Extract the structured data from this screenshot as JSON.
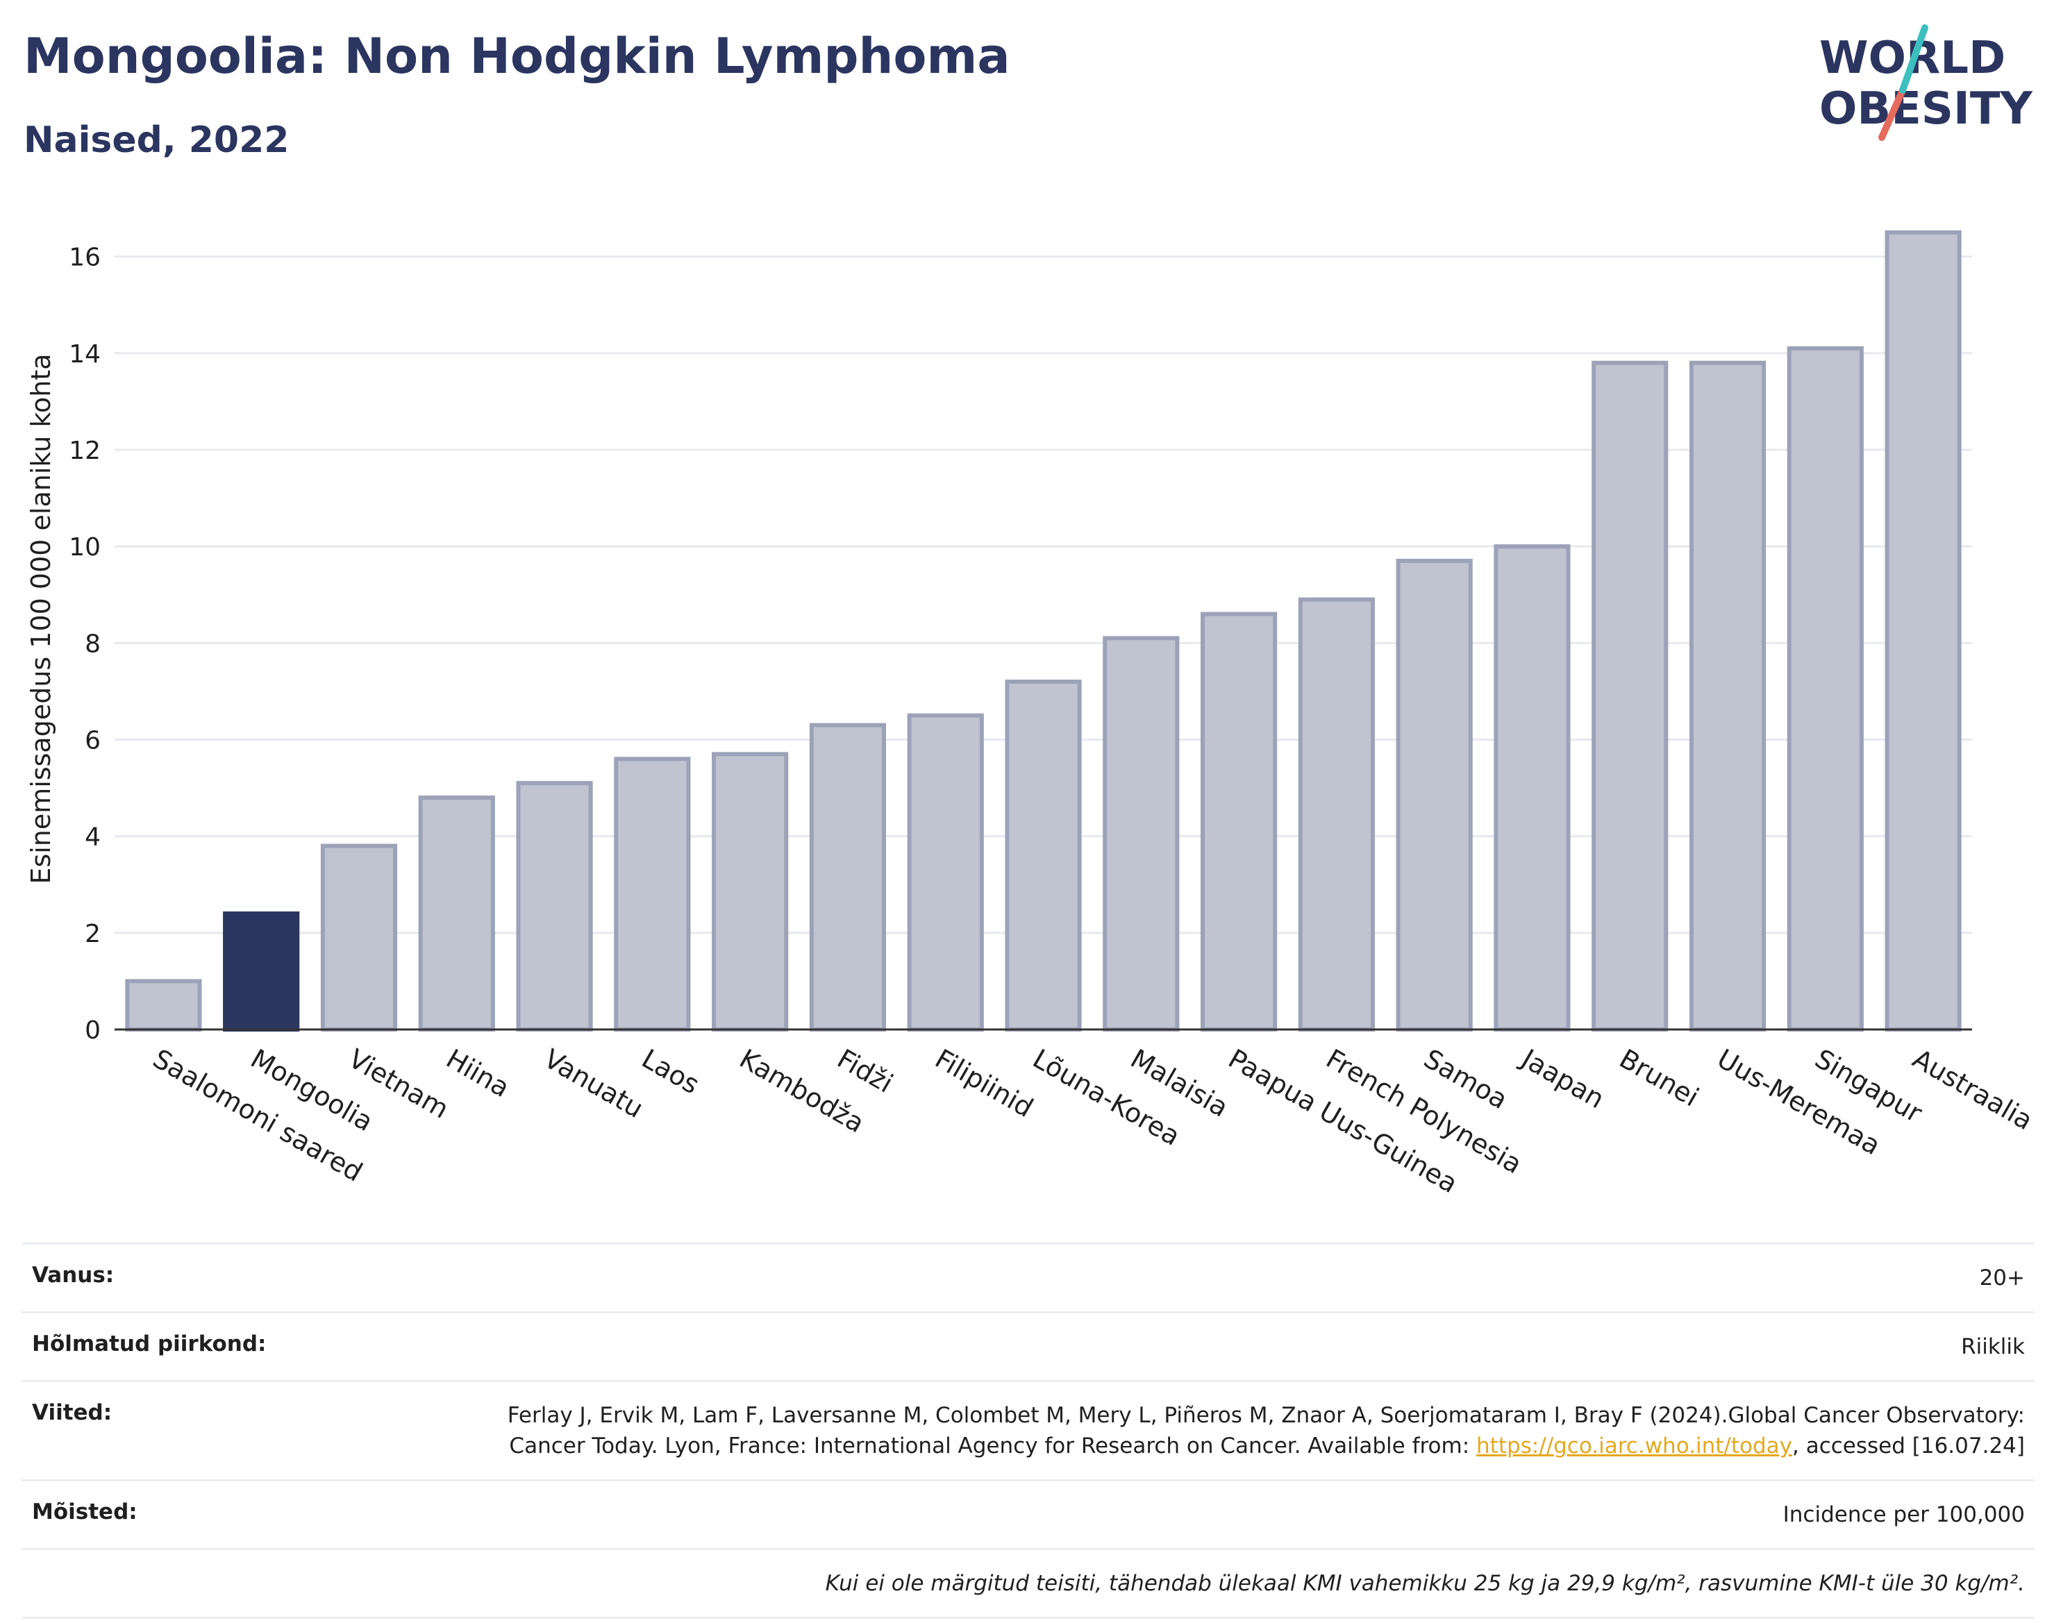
{
  "header": {
    "title": "Mongoolia: Non Hodgkin Lymphoma",
    "subtitle": "Naised, 2022"
  },
  "logo": {
    "line1": "WORLD",
    "line2": "OBESITY"
  },
  "colors": {
    "highlight": "#2b3560",
    "bar": "#c0c4d0",
    "bar_border": "#9ca2b8",
    "grid": "#e8e9ee",
    "axis": "#333333"
  },
  "chart_data": {
    "type": "bar",
    "ylabel": "Esinemissagedus 100 000 elaniku kohta",
    "ylim": [
      0,
      17
    ],
    "yticks": [
      0,
      2,
      4,
      6,
      8,
      10,
      12,
      14,
      16
    ],
    "grid": true,
    "highlight": "Mongoolia",
    "categories": [
      "Saalomoni saared",
      "Mongoolia",
      "Vietnam",
      "Hiina",
      "Vanuatu",
      "Laos",
      "Kambodža",
      "Fidži",
      "Filipiinid",
      "Lõuna-Korea",
      "Malaisia",
      "Paapua Uus-Guinea",
      "French Polynesia",
      "Samoa",
      "Jaapan",
      "Brunei",
      "Uus-Meremaa",
      "Singapur",
      "Austraalia"
    ],
    "values": [
      1.0,
      2.4,
      3.8,
      4.8,
      5.1,
      5.6,
      5.7,
      6.3,
      6.5,
      7.2,
      8.1,
      8.6,
      8.9,
      9.7,
      10.0,
      13.8,
      13.8,
      14.1,
      16.5
    ]
  },
  "meta": {
    "age_label": "Vanus:",
    "age_value": "20+",
    "region_label": "Hõlmatud piirkond:",
    "region_value": "Riiklik",
    "refs_label": "Viited:",
    "refs_text": "Ferlay J, Ervik M, Lam F, Laversanne M, Colombet M, Mery L, Piñeros M, Znaor A, Soerjomataram I, Bray F (2024).Global Cancer Observatory: Cancer Today. Lyon, France: International Agency for Research on Cancer. Available from: ",
    "refs_link": "https://gco.iarc.who.int/today",
    "refs_suffix": ", accessed [16.07.24]",
    "defs_label": "Mõisted:",
    "defs_value": "Incidence per 100,000",
    "note": "Kui ei ole märgitud teisiti, tähendab ülekaal KMI vahemikku 25 kg ja 29,9 kg/m², rasvumine KMI-t üle 30 kg/m²."
  }
}
